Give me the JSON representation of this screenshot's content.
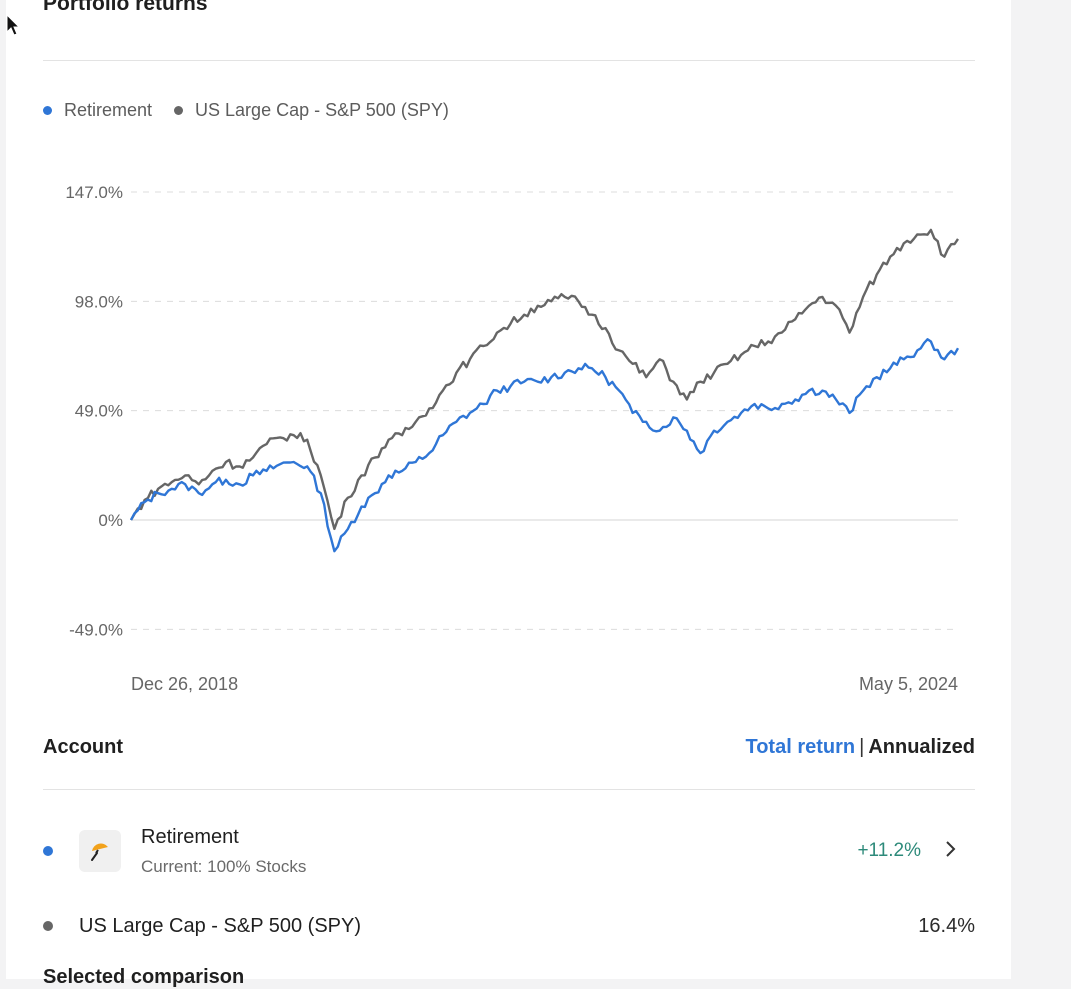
{
  "header": {
    "title": "Portfolio returns"
  },
  "legend": [
    {
      "label": "Retirement",
      "color": "#2f76d6"
    },
    {
      "label": "US Large Cap - S&P 500 (SPY)",
      "color": "#666666"
    }
  ],
  "accounts_section": {
    "label": "Account",
    "toggle_active": "Total return",
    "toggle_sep": "|",
    "toggle_inactive": "Annualized"
  },
  "accounts": [
    {
      "name": "Retirement",
      "sub": "Current: 100% Stocks",
      "value": "+11.2%",
      "dot_color": "#2f76d6",
      "icon": "umbrella-icon"
    },
    {
      "name": "US Large Cap - S&P 500 (SPY)",
      "value": "16.4%",
      "dot_color": "#666666"
    }
  ],
  "footer_partial_text": "Selected comparison",
  "chart_data": {
    "type": "line",
    "y_ticks": [
      147,
      98,
      49,
      0,
      -49
    ],
    "y_tick_labels": [
      "147.0%",
      "98.0%",
      "49.0%",
      "0%",
      "-49.0%"
    ],
    "ylim": [
      -49,
      147
    ],
    "x_start_label": "Dec 26, 2018",
    "x_end_label": "May 5, 2024",
    "grid": "dashed horizontal",
    "legend_position": "top-left",
    "series": [
      {
        "name": "Retirement",
        "color": "#2f76d6",
        "values": [
          0,
          8,
          12,
          14,
          16,
          12,
          16,
          18,
          16,
          20,
          22,
          25,
          26,
          24,
          12,
          -14,
          -4,
          6,
          12,
          20,
          22,
          26,
          30,
          38,
          44,
          48,
          52,
          58,
          60,
          62,
          62,
          64,
          66,
          68,
          68,
          64,
          58,
          48,
          44,
          40,
          46,
          40,
          30,
          40,
          44,
          48,
          52,
          50,
          52,
          54,
          58,
          58,
          54,
          48,
          58,
          64,
          68,
          72,
          76,
          80,
          72,
          77
        ]
      },
      {
        "name": "US Large Cap - S&P 500 (SPY)",
        "color": "#666666",
        "values": [
          0,
          9,
          14,
          17,
          20,
          16,
          22,
          26,
          24,
          28,
          34,
          37,
          38,
          36,
          20,
          -4,
          10,
          20,
          28,
          36,
          38,
          44,
          50,
          58,
          66,
          72,
          78,
          84,
          88,
          92,
          96,
          98,
          100,
          98,
          92,
          86,
          76,
          70,
          64,
          72,
          62,
          54,
          62,
          66,
          70,
          74,
          78,
          80,
          84,
          90,
          96,
          100,
          96,
          84,
          100,
          110,
          118,
          124,
          128,
          130,
          118,
          126
        ]
      }
    ]
  }
}
